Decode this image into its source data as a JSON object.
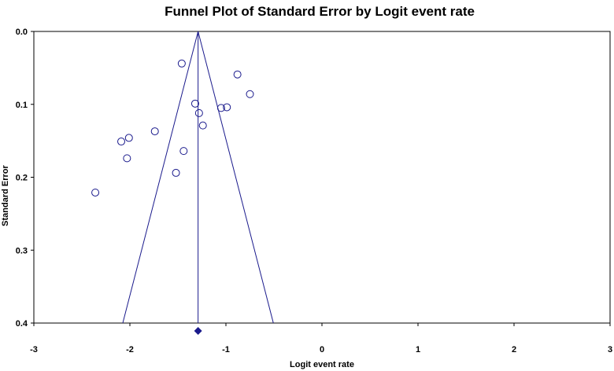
{
  "chart_data": {
    "type": "scatter",
    "title": "Funnel Plot of Standard Error by Logit event rate",
    "xlabel": "Logit event rate",
    "ylabel": "Standard Error",
    "xlim": [
      -3,
      3
    ],
    "ylim": [
      0.0,
      0.4
    ],
    "y_inverted": true,
    "x_ticks": [
      "-3",
      "-2",
      "-1",
      "0",
      "1",
      "2",
      "3"
    ],
    "y_ticks": [
      "0.0",
      "0.1",
      "0.2",
      "0.3",
      "0.4"
    ],
    "grid": false,
    "legend": "none",
    "pooled_estimate": -1.29,
    "funnel_halfwidth_factor": 1.96,
    "points": [
      {
        "x": -1.46,
        "y": 0.044
      },
      {
        "x": -0.88,
        "y": 0.059
      },
      {
        "x": -0.75,
        "y": 0.086
      },
      {
        "x": -1.32,
        "y": 0.099
      },
      {
        "x": -1.28,
        "y": 0.112
      },
      {
        "x": -1.05,
        "y": 0.105
      },
      {
        "x": -0.99,
        "y": 0.104
      },
      {
        "x": -1.24,
        "y": 0.129
      },
      {
        "x": -1.74,
        "y": 0.137
      },
      {
        "x": -2.01,
        "y": 0.146
      },
      {
        "x": -2.09,
        "y": 0.151
      },
      {
        "x": -1.44,
        "y": 0.164
      },
      {
        "x": -2.03,
        "y": 0.174
      },
      {
        "x": -1.52,
        "y": 0.194
      },
      {
        "x": -2.36,
        "y": 0.221
      }
    ],
    "colors": {
      "marker": "#1a1a8c",
      "funnel": "#1a1a8c",
      "axes": "#000000"
    }
  }
}
